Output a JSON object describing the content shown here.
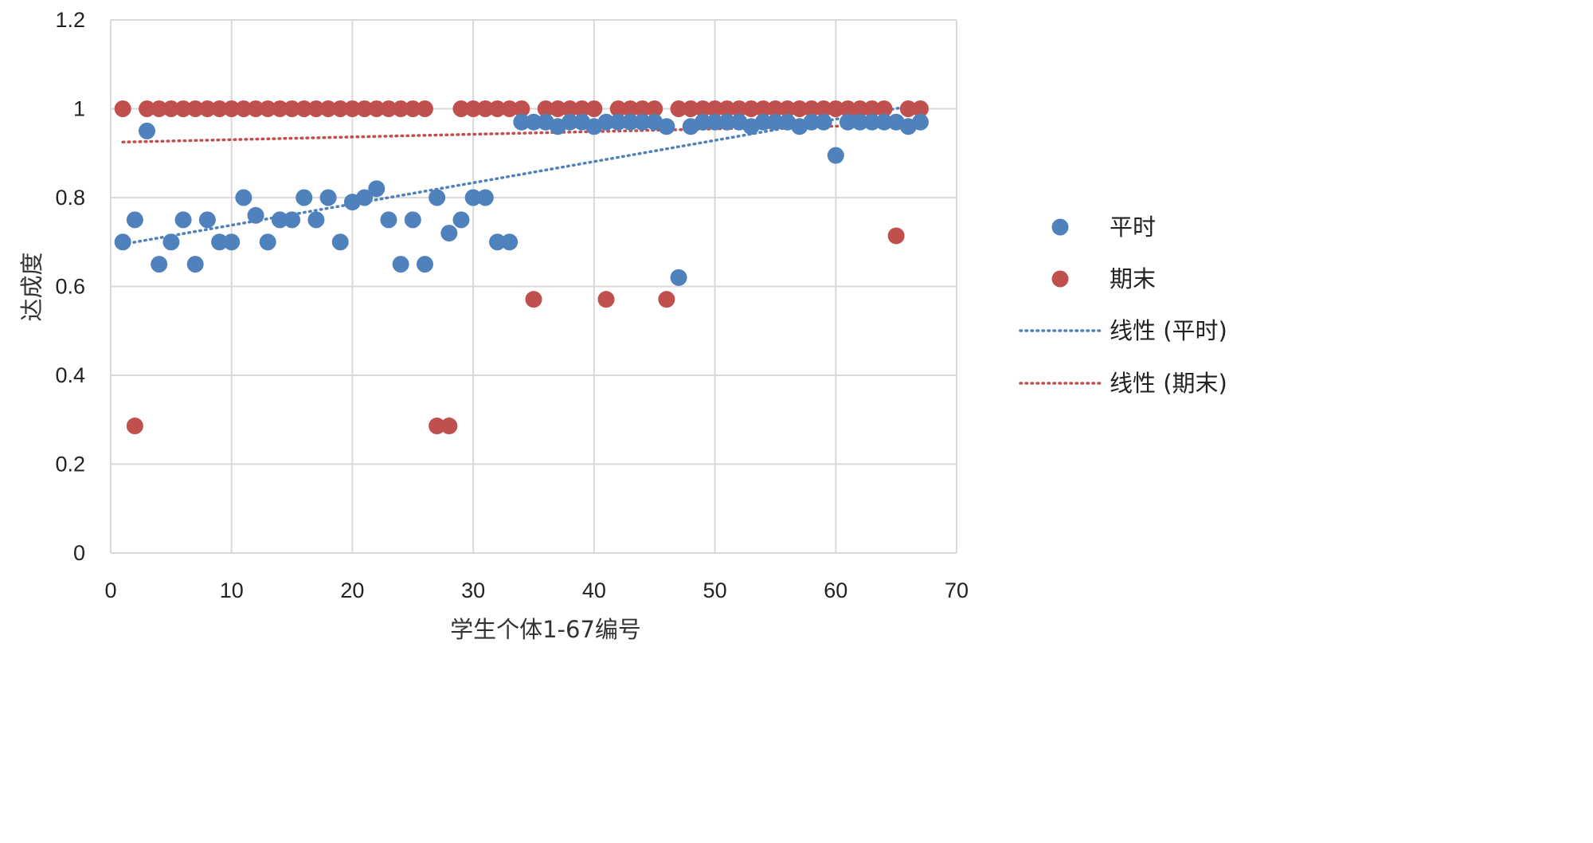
{
  "chart_data": {
    "type": "scatter",
    "title": "",
    "xlabel": "学生个体1-67编号",
    "ylabel": "达成度",
    "xlim": [
      0,
      70
    ],
    "ylim": [
      0,
      1.2
    ],
    "x_ticks": [
      "0",
      "10",
      "20",
      "30",
      "40",
      "50",
      "60",
      "70"
    ],
    "y_ticks": [
      "0",
      "0.2",
      "0.4",
      "0.6",
      "0.8",
      "1",
      "1.2"
    ],
    "grid": "on",
    "legend_position": "right",
    "series": [
      {
        "name": "平时",
        "color": "#4f81bd",
        "marker": "circle",
        "x": [
          1,
          2,
          3,
          4,
          5,
          6,
          7,
          8,
          9,
          10,
          11,
          12,
          13,
          14,
          15,
          16,
          17,
          18,
          19,
          20,
          21,
          22,
          23,
          24,
          25,
          26,
          27,
          28,
          29,
          30,
          31,
          32,
          33,
          34,
          35,
          36,
          37,
          38,
          39,
          40,
          41,
          42,
          43,
          44,
          45,
          46,
          47,
          48,
          49,
          50,
          51,
          52,
          53,
          54,
          55,
          56,
          57,
          58,
          59,
          60,
          61,
          62,
          63,
          64,
          65,
          66,
          67
        ],
        "y": [
          0.7,
          0.75,
          0.95,
          0.65,
          0.7,
          0.75,
          0.65,
          0.75,
          0.7,
          0.7,
          0.8,
          0.76,
          0.7,
          0.75,
          0.75,
          0.8,
          0.75,
          0.8,
          0.7,
          0.79,
          0.8,
          0.82,
          0.75,
          0.65,
          0.75,
          0.65,
          0.8,
          0.72,
          0.75,
          0.8,
          0.8,
          0.7,
          0.7,
          0.97,
          0.97,
          0.97,
          0.96,
          0.97,
          0.97,
          0.96,
          0.97,
          0.97,
          0.97,
          0.97,
          0.97,
          0.96,
          0.62,
          0.96,
          0.97,
          0.97,
          0.97,
          0.97,
          0.96,
          0.97,
          0.97,
          0.97,
          0.96,
          0.97,
          0.97,
          0.895,
          0.97,
          0.97,
          0.97,
          0.97,
          0.97,
          0.96,
          0.97
        ]
      },
      {
        "name": "期末",
        "color": "#c0504d",
        "marker": "circle",
        "x": [
          1,
          2,
          3,
          4,
          5,
          6,
          7,
          8,
          9,
          10,
          11,
          12,
          13,
          14,
          15,
          16,
          17,
          18,
          19,
          20,
          21,
          22,
          23,
          24,
          25,
          26,
          27,
          28,
          29,
          30,
          31,
          32,
          33,
          34,
          35,
          36,
          37,
          38,
          39,
          40,
          41,
          42,
          43,
          44,
          45,
          46,
          47,
          48,
          49,
          50,
          51,
          52,
          53,
          54,
          55,
          56,
          57,
          58,
          59,
          60,
          61,
          62,
          63,
          64,
          65,
          66,
          67
        ],
        "y": [
          1,
          0.286,
          1,
          1,
          1,
          1,
          1,
          1,
          1,
          1,
          1,
          1,
          1,
          1,
          1,
          1,
          1,
          1,
          1,
          1,
          1,
          1,
          1,
          1,
          1,
          1,
          0.286,
          0.286,
          1,
          1,
          1,
          1,
          1,
          1,
          0.571,
          1,
          1,
          1,
          1,
          1,
          0.571,
          1,
          1,
          1,
          1,
          0.571,
          1,
          1,
          1,
          1,
          1,
          1,
          1,
          1,
          1,
          1,
          1,
          1,
          1,
          1,
          1,
          1,
          1,
          1,
          0.714,
          1,
          1
        ]
      }
    ],
    "trendlines": [
      {
        "name": "线性 (平时)",
        "type": "linear",
        "color": "#4f81bd",
        "style": "dotted",
        "x": [
          1,
          67
        ],
        "y": [
          0.695,
          1.01
        ]
      },
      {
        "name": "线性 (期末)",
        "type": "linear",
        "color": "#c0504d",
        "style": "dotted",
        "x": [
          1,
          67
        ],
        "y": [
          0.925,
          0.965
        ]
      }
    ],
    "legend": [
      {
        "label": "平时",
        "kind": "marker",
        "color": "#4f81bd"
      },
      {
        "label": "期末",
        "kind": "marker",
        "color": "#c0504d"
      },
      {
        "label": "线性 (平时)",
        "kind": "dotted-line",
        "color": "#4f81bd"
      },
      {
        "label": "线性 (期末)",
        "kind": "dotted-line",
        "color": "#c0504d"
      }
    ]
  }
}
